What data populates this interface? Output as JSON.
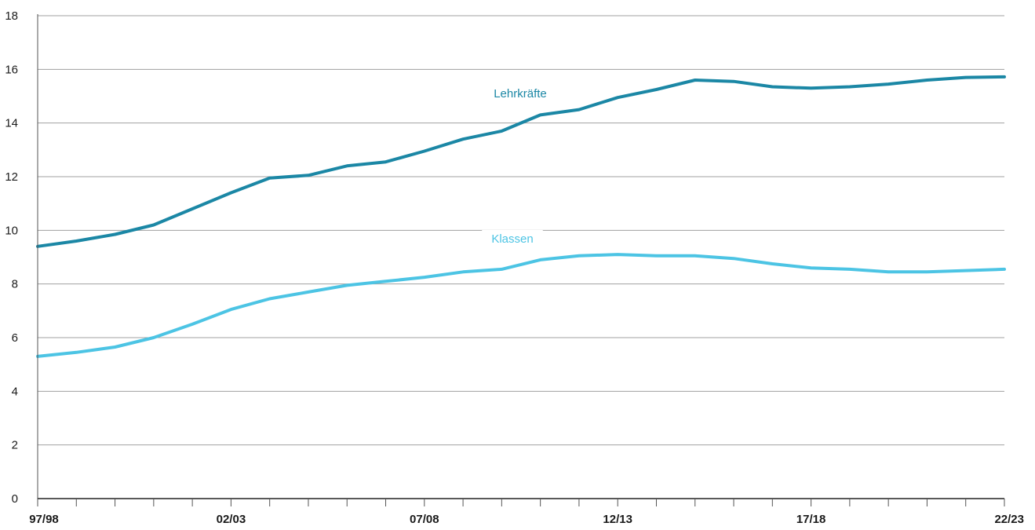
{
  "chart_data": {
    "type": "line",
    "title": "",
    "xlabel": "",
    "ylabel": "",
    "ylim": [
      0,
      18
    ],
    "yticks": [
      0,
      2,
      4,
      6,
      8,
      10,
      12,
      14,
      16,
      18
    ],
    "grid": true,
    "x": [
      "97/98",
      "98/99",
      "99/00",
      "00/01",
      "01/02",
      "02/03",
      "03/04",
      "04/05",
      "05/06",
      "06/07",
      "07/08",
      "08/09",
      "09/10",
      "10/11",
      "11/12",
      "12/13",
      "13/14",
      "14/15",
      "15/16",
      "16/17",
      "17/18",
      "18/19",
      "19/20",
      "20/21",
      "21/22",
      "22/23"
    ],
    "xtick_labels": [
      "97/98",
      "02/03",
      "07/08",
      "12/13",
      "17/18",
      "22/23"
    ],
    "series": [
      {
        "name": "Lehrkräfte",
        "color": "#1b87a5",
        "values": [
          9.4,
          9.6,
          9.85,
          10.2,
          10.8,
          11.4,
          11.95,
          12.05,
          12.4,
          12.55,
          12.95,
          13.4,
          13.7,
          14.3,
          14.5,
          14.95,
          15.25,
          15.6,
          15.55,
          15.35,
          15.3,
          15.35,
          15.45,
          15.6,
          15.7,
          15.72
        ]
      },
      {
        "name": "Klassen",
        "color": "#4cc4e4",
        "values": [
          5.3,
          5.45,
          5.65,
          6.0,
          6.5,
          7.05,
          7.45,
          7.7,
          7.95,
          8.1,
          8.25,
          8.45,
          8.55,
          8.9,
          9.05,
          9.1,
          9.05,
          9.05,
          8.95,
          8.75,
          8.6,
          8.55,
          8.45,
          8.45,
          8.5,
          8.55
        ]
      }
    ]
  }
}
